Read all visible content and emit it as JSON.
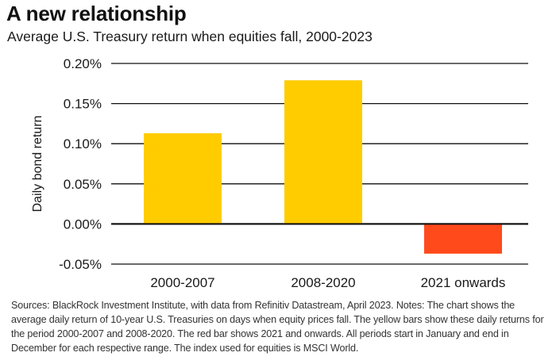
{
  "title": "A new relationship",
  "subtitle": "Average U.S. Treasury return when equities fall, 2000-2023",
  "footnote": "Sources: BlackRock Investment Institute, with data from Refinitiv Datastream, April 2023. Notes: The chart shows the average daily return of 10-year U.S. Treasuries on days when equity prices fall. The yellow bars show these daily returns for the period 2000-2007 and 2008-2020. The red bar shows 2021 and onwards. All periods start in January and end in December for each respective range. The index used for equities is MSCI World.",
  "colors": {
    "positive": "#FFCC00",
    "negative": "#FF4A1C",
    "gridline": "#111111"
  },
  "chart_data": {
    "type": "bar",
    "title": "A new relationship",
    "subtitle": "Average U.S. Treasury return when equities fall, 2000-2023",
    "xlabel": "",
    "ylabel": "Daily bond return",
    "categories": [
      "2000-2007",
      "2008-2020",
      "2021 onwards"
    ],
    "values": [
      0.113,
      0.179,
      -0.037
    ],
    "bar_colors": [
      "#FFCC00",
      "#FFCC00",
      "#FF4A1C"
    ],
    "ylim": [
      -0.05,
      0.2
    ],
    "yticks": [
      0.2,
      0.15,
      0.1,
      0.05,
      0.0,
      -0.05
    ],
    "ytick_labels": [
      "0.20%",
      "0.15%",
      "0.10%",
      "0.05%",
      "0.00%",
      "-0.05%"
    ],
    "grid": true,
    "legend": false
  }
}
